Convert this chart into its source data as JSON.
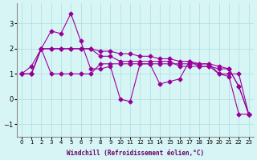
{
  "xlabel": "Windchill (Refroidissement éolien,°C)",
  "hours": [
    0,
    1,
    2,
    3,
    4,
    5,
    6,
    7,
    8,
    9,
    10,
    11,
    12,
    13,
    14,
    15,
    16,
    17,
    18,
    19,
    20,
    21,
    22,
    23
  ],
  "line1": [
    1.0,
    1.3,
    2.0,
    2.7,
    2.6,
    3.4,
    2.3,
    1.2,
    1.2,
    1.3,
    0.0,
    -0.1,
    1.4,
    1.4,
    0.6,
    0.7,
    0.8,
    1.5,
    1.3,
    1.3,
    1.0,
    0.9,
    -0.6,
    -0.6
  ],
  "line2": [
    1.0,
    1.0,
    2.0,
    1.0,
    1.0,
    1.0,
    1.0,
    1.0,
    1.4,
    1.4,
    1.4,
    1.4,
    1.4,
    1.4,
    1.4,
    1.4,
    1.4,
    1.4,
    1.4,
    1.4,
    1.0,
    1.0,
    1.0,
    -0.6
  ],
  "line3": [
    1.0,
    1.0,
    2.0,
    2.0,
    2.0,
    2.0,
    2.0,
    2.0,
    1.7,
    1.7,
    1.5,
    1.5,
    1.5,
    1.5,
    1.5,
    1.5,
    1.3,
    1.3,
    1.3,
    1.3,
    1.2,
    1.2,
    0.5,
    -0.6
  ],
  "line4": [
    1.0,
    1.0,
    2.0,
    2.0,
    2.0,
    2.0,
    2.0,
    2.0,
    1.9,
    1.9,
    1.8,
    1.8,
    1.7,
    1.7,
    1.6,
    1.6,
    1.5,
    1.5,
    1.4,
    1.4,
    1.3,
    1.2,
    0.5,
    -0.6
  ],
  "line_color": "#990099",
  "bg_color": "#d8f5f5",
  "grid_color": "#aadddd",
  "ylim": [
    -1.5,
    3.8
  ],
  "yticks": [
    -1,
    0,
    1,
    2,
    3
  ],
  "xlim": [
    -0.5,
    23.5
  ]
}
